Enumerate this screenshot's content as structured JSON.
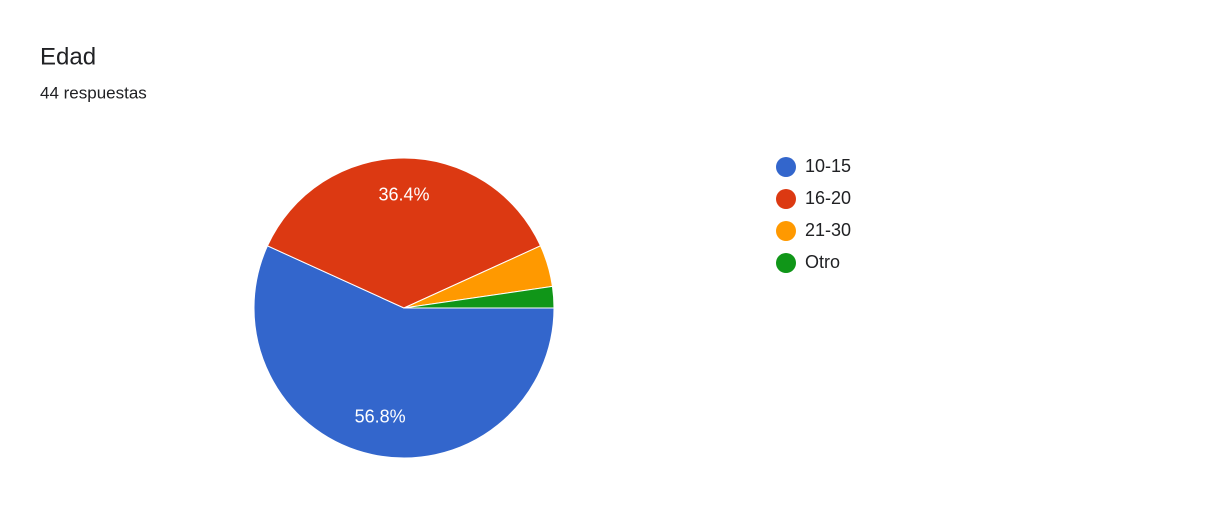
{
  "chart_data": {
    "type": "pie",
    "title": "Edad",
    "subtitle": "44 respuestas",
    "categories": [
      "10-15",
      "16-20",
      "21-30",
      "Otro"
    ],
    "values": [
      56.8,
      36.4,
      4.5,
      2.3
    ],
    "value_labels": [
      "56.8%",
      "36.4%",
      null,
      null
    ],
    "colors": [
      "#3366cc",
      "#dc3912",
      "#ff9900",
      "#109618"
    ],
    "legend": "right"
  }
}
